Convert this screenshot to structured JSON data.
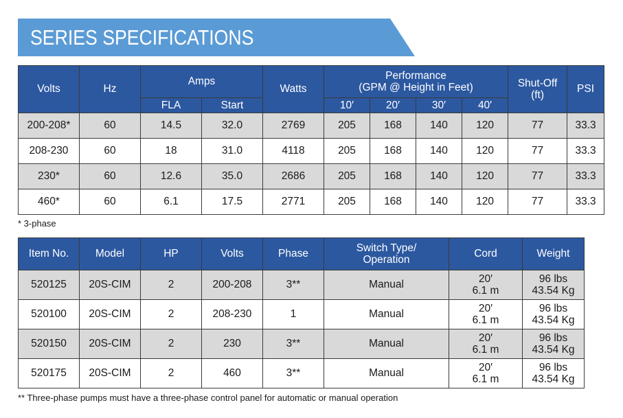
{
  "banner": {
    "title": "SERIES SPECIFICATIONS"
  },
  "spec_table": {
    "headers": {
      "volts": "Volts",
      "hz": "Hz",
      "amps": "Amps",
      "fla": "FLA",
      "start": "Start",
      "watts": "Watts",
      "performance_line1": "Performance",
      "performance_line2": "(GPM @ Height in Feet)",
      "h10": "10′",
      "h20": "20′",
      "h30": "30′",
      "h40": "40′",
      "shutoff_line1": "Shut-Off",
      "shutoff_line2": "(ft)",
      "psi": "PSI"
    },
    "rows": [
      {
        "volts": "200-208*",
        "hz": "60",
        "fla": "14.5",
        "start": "32.0",
        "watts": "2769",
        "gpm10": "205",
        "gpm20": "168",
        "gpm30": "140",
        "gpm40": "120",
        "shutoff": "77",
        "psi": "33.3"
      },
      {
        "volts": "208-230",
        "hz": "60",
        "fla": "18",
        "start": "31.0",
        "watts": "4118",
        "gpm10": "205",
        "gpm20": "168",
        "gpm30": "140",
        "gpm40": "120",
        "shutoff": "77",
        "psi": "33.3"
      },
      {
        "volts": "230*",
        "hz": "60",
        "fla": "12.6",
        "start": "35.0",
        "watts": "2686",
        "gpm10": "205",
        "gpm20": "168",
        "gpm30": "140",
        "gpm40": "120",
        "shutoff": "77",
        "psi": "33.3"
      },
      {
        "volts": "460*",
        "hz": "60",
        "fla": "6.1",
        "start": "17.5",
        "watts": "2771",
        "gpm10": "205",
        "gpm20": "168",
        "gpm30": "140",
        "gpm40": "120",
        "shutoff": "77",
        "psi": "33.3"
      }
    ],
    "footnote": "* 3-phase"
  },
  "model_table": {
    "headers": {
      "item": "Item No.",
      "model": "Model",
      "hp": "HP",
      "volts": "Volts",
      "phase": "Phase",
      "switch_line1": "Switch Type/",
      "switch_line2": "Operation",
      "cord": "Cord",
      "weight": "Weight"
    },
    "rows": [
      {
        "item": "520125",
        "model": "20S-CIM",
        "hp": "2",
        "volts": "200-208",
        "phase": "3**",
        "switch": "Manual",
        "cord_ft": "20′",
        "cord_m": "6.1 m",
        "weight_lbs": "96 lbs",
        "weight_kg": "43.54 Kg"
      },
      {
        "item": "520100",
        "model": "20S-CIM",
        "hp": "2",
        "volts": "208-230",
        "phase": "1",
        "switch": "Manual",
        "cord_ft": "20′",
        "cord_m": "6.1 m",
        "weight_lbs": "96 lbs",
        "weight_kg": "43.54 Kg"
      },
      {
        "item": "520150",
        "model": "20S-CIM",
        "hp": "2",
        "volts": "230",
        "phase": "3**",
        "switch": "Manual",
        "cord_ft": "20′",
        "cord_m": "6.1 m",
        "weight_lbs": "96 lbs",
        "weight_kg": "43.54 Kg"
      },
      {
        "item": "520175",
        "model": "20S-CIM",
        "hp": "2",
        "volts": "460",
        "phase": "3**",
        "switch": "Manual",
        "cord_ft": "20′",
        "cord_m": "6.1 m",
        "weight_lbs": "96 lbs",
        "weight_kg": "43.54 Kg"
      }
    ],
    "footnote": "** Three-phase pumps must have a three-phase control panel for automatic or manual operation"
  },
  "colors": {
    "banner": "#5b9bd5",
    "header": "#2c58a0",
    "row_shade": "#d9d9d9"
  }
}
